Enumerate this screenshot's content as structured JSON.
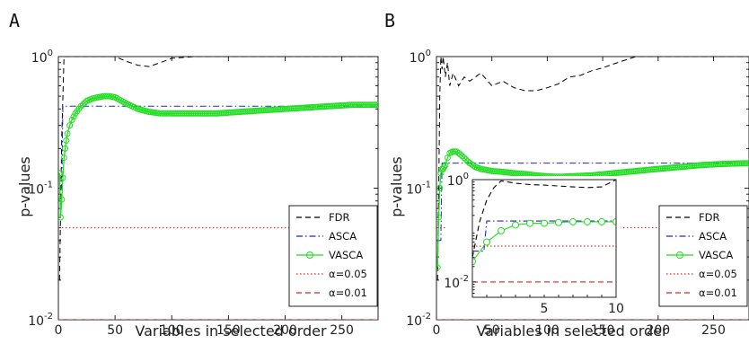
{
  "panels": [
    {
      "letter": "A",
      "ylabel": "p-values",
      "xlabel": "Variables in selected order",
      "yticks": [
        {
          "value": 1,
          "base": "10",
          "exp": "0"
        },
        {
          "value": 0.1,
          "base": "10",
          "exp": "-1"
        },
        {
          "value": 0.01,
          "base": "10",
          "exp": "-2"
        }
      ]
    },
    {
      "letter": "B",
      "ylabel": "p-values",
      "xlabel": "Variables in selected order",
      "yticks": [
        {
          "value": 1,
          "base": "10",
          "exp": "0"
        },
        {
          "value": 0.1,
          "base": "10",
          "exp": "-1"
        },
        {
          "value": 0.01,
          "base": "10",
          "exp": "-2"
        }
      ]
    }
  ],
  "legend": [
    "FDR",
    "ASCA",
    "VASCA",
    "α=0.05",
    "α=0.01"
  ],
  "colors": {
    "FDR": "#000000",
    "ASCA": "#2222dd",
    "VASCA": "#22dd22",
    "a05": "#dd2222",
    "a01": "#dd2222"
  },
  "chart_data": [
    {
      "type": "line",
      "panel": "A",
      "ylog": true,
      "xlim": [
        0,
        282
      ],
      "ylim": [
        0.01,
        1
      ],
      "xticks": [
        0,
        50,
        100,
        150,
        200,
        250
      ],
      "legend_position": "bottom-right",
      "series": [
        {
          "name": "FDR",
          "style": "dashed",
          "x": [
            1,
            3,
            5,
            7,
            20,
            40,
            50,
            60,
            70,
            80,
            90,
            100,
            120,
            150,
            200,
            282
          ],
          "y": [
            0.02,
            0.25,
            1,
            1,
            1,
            1,
            1,
            0.92,
            0.86,
            0.84,
            0.9,
            0.97,
            1,
            1,
            1,
            1
          ]
        },
        {
          "name": "ASCA",
          "style": "dashdot",
          "x": [
            1,
            3,
            4,
            282
          ],
          "y": [
            0.1,
            0.1,
            0.42,
            0.42
          ]
        },
        {
          "name": "VASCA",
          "style": "solid-circle",
          "x": [
            1,
            2,
            3,
            4,
            5,
            6,
            7,
            8,
            10,
            12,
            15,
            20,
            25,
            30,
            35,
            40,
            45,
            50,
            60,
            70,
            80,
            90,
            100,
            120,
            140,
            160,
            180,
            200,
            220,
            240,
            260,
            282
          ],
          "y": [
            0.13,
            0.06,
            0.082,
            0.12,
            0.17,
            0.2,
            0.23,
            0.26,
            0.3,
            0.33,
            0.37,
            0.42,
            0.46,
            0.48,
            0.49,
            0.5,
            0.5,
            0.49,
            0.44,
            0.4,
            0.38,
            0.37,
            0.37,
            0.37,
            0.37,
            0.38,
            0.39,
            0.4,
            0.41,
            0.42,
            0.43,
            0.43
          ]
        },
        {
          "name": "α=0.05",
          "style": "dotted",
          "x": [
            0,
            282
          ],
          "y": [
            0.05,
            0.05
          ]
        },
        {
          "name": "α=0.01",
          "style": "dashed",
          "x": [
            0,
            282
          ],
          "y": [
            0.01,
            0.01
          ]
        }
      ]
    },
    {
      "type": "line",
      "panel": "B",
      "ylog": true,
      "xlim": [
        0,
        282
      ],
      "ylim": [
        0.01,
        1
      ],
      "xticks": [
        0,
        50,
        100,
        150,
        200,
        250
      ],
      "legend_position": "bottom-right",
      "series": [
        {
          "name": "FDR",
          "style": "dashed",
          "x": [
            1,
            2,
            3,
            4,
            5,
            6,
            8,
            10,
            12,
            15,
            20,
            25,
            30,
            40,
            50,
            60,
            70,
            80,
            90,
            100,
            110,
            120,
            130,
            140,
            150,
            160,
            180,
            200,
            230,
            282
          ],
          "y": [
            0.02,
            0.1,
            0.5,
            1,
            0.8,
            1,
            0.7,
            0.9,
            0.6,
            0.75,
            0.6,
            0.7,
            0.65,
            0.75,
            0.6,
            0.65,
            0.58,
            0.55,
            0.55,
            0.58,
            0.62,
            0.7,
            0.72,
            0.78,
            0.82,
            0.88,
            1,
            1,
            1,
            1
          ]
        },
        {
          "name": "ASCA",
          "style": "dashdot",
          "x": [
            1,
            4,
            5,
            282
          ],
          "y": [
            0.04,
            0.04,
            0.155,
            0.155
          ]
        },
        {
          "name": "VASCA",
          "style": "solid-circle",
          "x": [
            1,
            2,
            3,
            4,
            5,
            6,
            7,
            8,
            10,
            12,
            15,
            18,
            20,
            25,
            30,
            35,
            40,
            50,
            60,
            70,
            80,
            90,
            100,
            110,
            120,
            140,
            160,
            180,
            200,
            220,
            240,
            260,
            282
          ],
          "y": [
            0.025,
            0.06,
            0.1,
            0.13,
            0.14,
            0.14,
            0.145,
            0.15,
            0.17,
            0.185,
            0.19,
            0.19,
            0.185,
            0.17,
            0.155,
            0.145,
            0.14,
            0.135,
            0.133,
            0.13,
            0.128,
            0.125,
            0.123,
            0.122,
            0.123,
            0.125,
            0.13,
            0.135,
            0.14,
            0.145,
            0.15,
            0.153,
            0.155
          ]
        },
        {
          "name": "α=0.05",
          "style": "dotted",
          "x": [
            0,
            282
          ],
          "y": [
            0.05,
            0.05
          ]
        },
        {
          "name": "α=0.01",
          "style": "dashed",
          "x": [
            0,
            282
          ],
          "y": [
            0.01,
            0.01
          ]
        }
      ]
    },
    {
      "type": "line",
      "panel": "B-inset",
      "ylog": true,
      "xlim": [
        0,
        10
      ],
      "ylim": [
        0.005,
        1
      ],
      "xticks": [
        5,
        10
      ],
      "yticks": [
        {
          "value": 1,
          "label": "10^0"
        },
        {
          "value": 0.01,
          "label": "10^-2"
        }
      ],
      "series": [
        {
          "name": "FDR",
          "style": "dashed",
          "x": [
            0,
            0.5,
            1,
            1.5,
            2,
            3,
            4,
            5,
            6,
            7,
            8,
            9,
            10
          ],
          "y": [
            0.03,
            0.15,
            0.4,
            0.7,
            0.95,
            0.85,
            0.8,
            0.78,
            0.75,
            0.72,
            0.7,
            0.72,
            1
          ]
        },
        {
          "name": "ASCA",
          "style": "dashdot",
          "x": [
            0,
            0.8,
            1,
            10
          ],
          "y": [
            0.04,
            0.04,
            0.155,
            0.155
          ]
        },
        {
          "name": "VASCA",
          "style": "solid-circle",
          "x": [
            0,
            1,
            2,
            3,
            4,
            5,
            6,
            7,
            8,
            9,
            10
          ],
          "y": [
            0.025,
            0.06,
            0.1,
            0.13,
            0.14,
            0.14,
            0.145,
            0.15,
            0.15,
            0.15,
            0.15
          ]
        },
        {
          "name": "α=0.05",
          "style": "dotted",
          "x": [
            0,
            10
          ],
          "y": [
            0.05,
            0.05
          ]
        },
        {
          "name": "α=0.01",
          "style": "dashed",
          "x": [
            0,
            10
          ],
          "y": [
            0.01,
            0.01
          ]
        }
      ]
    }
  ]
}
